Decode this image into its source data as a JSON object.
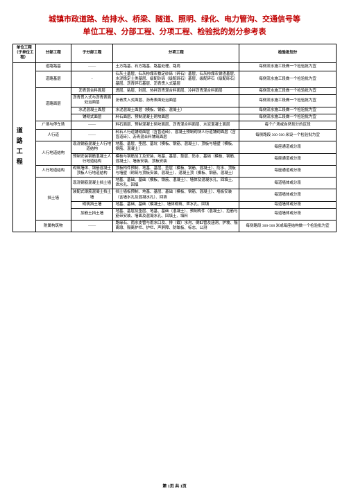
{
  "title_line1": "城镇市政道路、给排水、桥梁、隧道、照明、绿化、电力管沟、交通信号等",
  "title_line2": "单位工程、分部工程、分项工程、检验批的划分参考表",
  "header": {
    "c1": "单位工程（子单位工程）",
    "c2": "分部工程",
    "c3": "子分部工程",
    "c4": "分项工程",
    "c5": "检验批划分"
  },
  "unit": "道路工程",
  "rows": [
    {
      "c2": "道路路基",
      "c3": "——",
      "c4": "土方路基、石方路基、路基处理、路肩",
      "c5": "每侧流水施工段做一个检验批为宜"
    },
    {
      "c2": "道路基层",
      "c3": "-",
      "c4": "石灰土基层、石灰粉煤灰稳定砂砾（碎石）基层、石灰粉煤灰钢渣基层、水泥稳定土类基层、级配砂砾（级配砾石）基层、级配碎石（级配砾石）基层、沥青碎石基层、沥青贯入式基层",
      "c5": "每侧流水施工段做一个检验批为宜"
    },
    {
      "c2": "道路面层",
      "c3": "沥青混合料面层",
      "c4": "透层、粘层、封层、热拌沥青混合料面层、冷拌沥青混合料面层",
      "c5": "每侧流水施工段做一个检验批为宜"
    },
    {
      "c2": "",
      "c3": "沥青贯入式与沥青表面处治面层",
      "c4": "沥青贯入式面层、沥青表面处治面层",
      "c5": "每侧流水施工段做一个检验批为宜"
    },
    {
      "c2": "",
      "c3": "水泥混凝土面层",
      "c4": "水泥混凝土面层（模板、钢筋、混凝土）",
      "c5": "每侧流水施工段做一个检验批为宜"
    },
    {
      "c2": "",
      "c3": "铺砌式面层",
      "c4": "料石面层、预制混凝土砌块面层",
      "c5": "每侧流水施工段做一个检验批为宜"
    },
    {
      "c2": "广场与停车场",
      "c3": "——",
      "c4": "料石面层、预制混凝土砌块面层、沥青混合料面层、水泥混凝土面层",
      "c5": "每个广场或自然划分的区段"
    },
    {
      "c2": "人行道",
      "c3": "——",
      "c4": "料石人行道铺砌面层（含盲道砖）、混凝土预制砌块人行道铺砌面层（含盲道砖）、沥青混合料铺筑面层",
      "c5": "每侧路段 300-500 米设一个检验批为宜"
    },
    {
      "c2": "人行地道结构",
      "c3": "现浇钢筋混凝土人行地道结构",
      "c4": "地基、基层、垫层、基坑（模板、钢筋、混凝土）、顶板与墙壁（模板、钢筋、混凝土）",
      "c5": "每座通道或分段"
    },
    {
      "c2": "",
      "c3": "预制安装钢筋混凝土人行地道结构",
      "c4": "模板与钢筋加工及安装、地基、基层、垫层、防水、基础（模板、钢筋、混凝土）、墙板安装、顶板安装",
      "c5": "每座通道或分段"
    },
    {
      "c2": "人行地道结构",
      "c3": "砌筑墙体、钢筋混凝土顶板人行地道结构",
      "c4": "顶板构件预制、地基、基层、垫层（模板、钢筋、混凝土）、防水、顶板与墙壁（砌筑与顶板安装、混凝土）、混凝土顶（模板、钢筋、混凝土）",
      "c5": "每座通道或分段"
    },
    {
      "c2": "挡土墙",
      "c3": "现浇钢筋混凝土挡土墙",
      "c4": "地基、基础、基础（模板、钢筋、混凝土）、墙体及混凝水孔、回填土、泄水孔、回填",
      "c5": "每道墙体或分段"
    },
    {
      "c2": "",
      "c3": "装配式钢筋混凝土挡土墙",
      "c4": "挡土墙板预制、地基、基层、基础（模板、钢筋、混凝土）、墙板安装（含墙水孔及混凝水孔）、回填",
      "c5": "每道墙体或分段"
    },
    {
      "c2": "",
      "c3": "砌筑挡土墙",
      "c4": "地基、基础、基础（模凝土）、墙体砌筑、泄水孔、回填",
      "c5": "每道墙体或分段"
    },
    {
      "c2": "",
      "c3": "加筋土挡土墙",
      "c4": "地基、基层及垫层、地基、基础（混凝土）、预制构件（混凝土）、拉筋与筋带安装、墙面及混凝水孔、回填土、填料",
      "c5": "每道墙体或分段"
    },
    {
      "c2": "附属构筑物",
      "c3": "——",
      "c4": "路缘石、雨水支管与雨水口及、排（截）水沟、倒虹管及涵洞、护坡、隔离墩、隔离护栏、护栏、声屏障、防眩板、标志、公测",
      "c5": "每侧路段 300-500 米或每座结构做一个检验批为宜"
    }
  ],
  "footer": "第 1页 共 1页"
}
